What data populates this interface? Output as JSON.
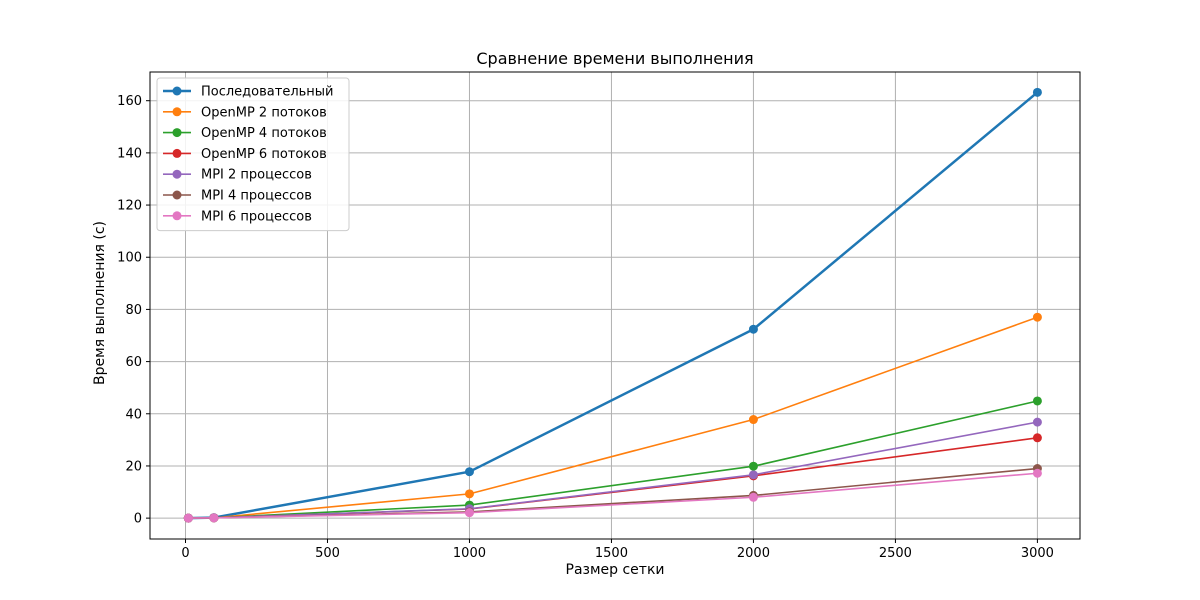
{
  "chart_data": {
    "type": "line",
    "title": "Сравнение времени выполнения",
    "xlabel": "Размер сетки",
    "ylabel": "Время выполнения (с)",
    "xlim": [
      -125,
      3150
    ],
    "ylim": [
      -8,
      171
    ],
    "xticks": [
      0,
      500,
      1000,
      1500,
      2000,
      2500,
      3000
    ],
    "yticks": [
      0,
      20,
      40,
      60,
      80,
      100,
      120,
      140,
      160
    ],
    "grid": true,
    "legend_position": "top-left",
    "x": [
      10,
      100,
      1000,
      2000,
      3000
    ],
    "series": [
      {
        "name": "Последовательный",
        "color": "#1f77b4",
        "values": [
          0.01,
          0.2,
          17.8,
          72.4,
          163.2
        ]
      },
      {
        "name": "OpenMP 2 потоков",
        "color": "#ff7f0e",
        "values": [
          0.01,
          0.1,
          9.3,
          37.8,
          77.0
        ]
      },
      {
        "name": "OpenMP 4 потоков",
        "color": "#2ca02c",
        "values": [
          0.01,
          0.1,
          5.0,
          19.9,
          44.9
        ]
      },
      {
        "name": "OpenMP 6 потоков",
        "color": "#d62728",
        "values": [
          0.01,
          0.1,
          3.5,
          16.2,
          30.8
        ]
      },
      {
        "name": "MPI 2 процессов",
        "color": "#9467bd",
        "values": [
          0.01,
          0.1,
          3.6,
          16.6,
          36.8
        ]
      },
      {
        "name": "MPI 4 процессов",
        "color": "#8c564b",
        "values": [
          0.01,
          0.1,
          2.4,
          8.7,
          19.0
        ]
      },
      {
        "name": "MPI 6 процессов",
        "color": "#e377c2",
        "values": [
          0.01,
          0.1,
          2.1,
          8.0,
          17.2
        ]
      }
    ]
  }
}
